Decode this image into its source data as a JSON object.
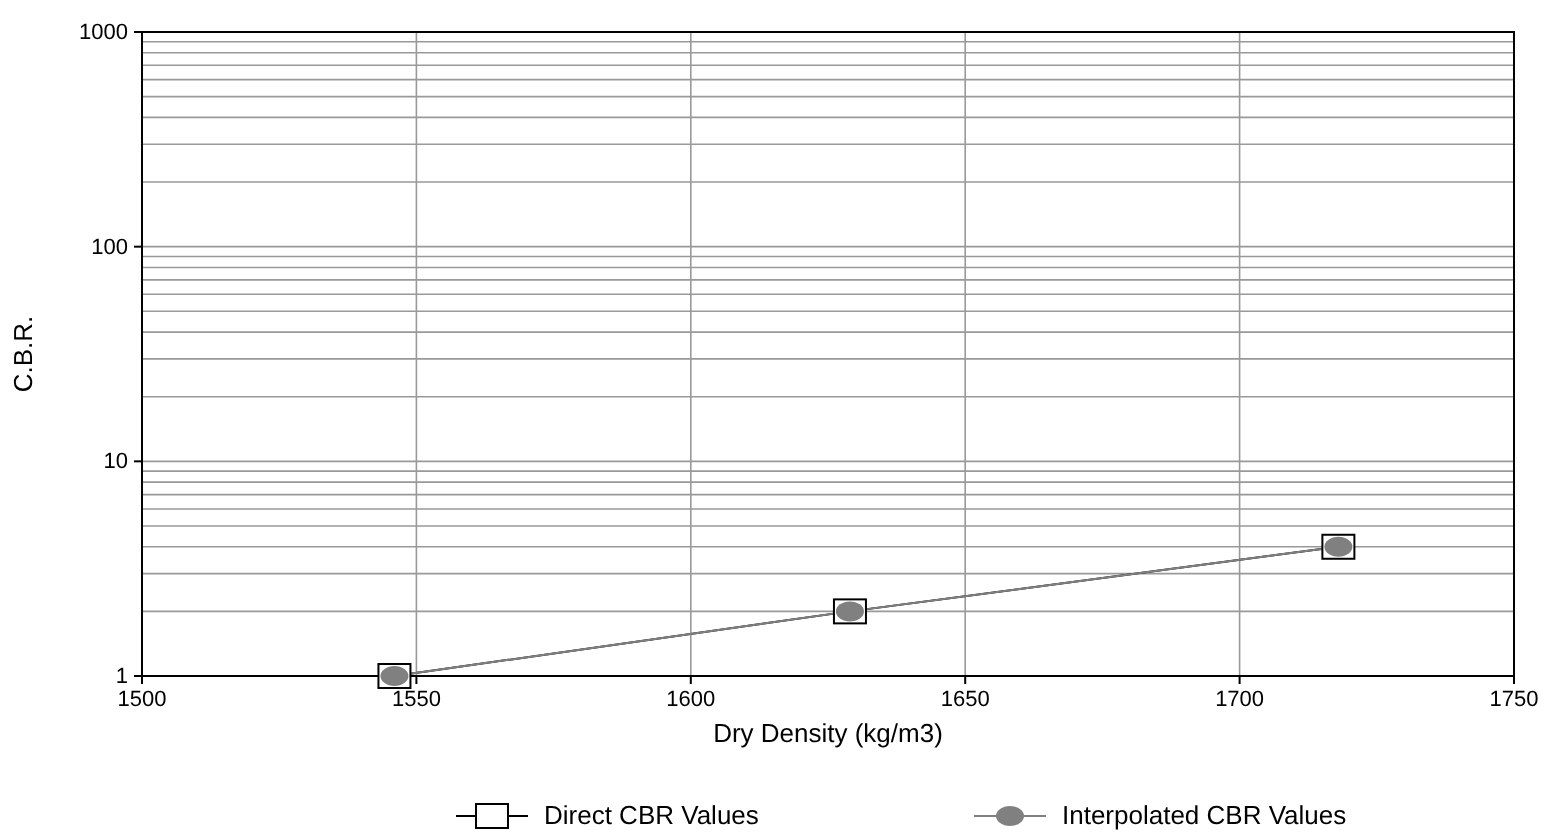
{
  "chart_data": {
    "type": "line",
    "xlabel": "Dry Density (kg/m3)",
    "ylabel": "C.B.R.",
    "log": "y",
    "grid": true,
    "legend": "bottom",
    "xlim": [
      1500,
      1750
    ],
    "xticks": [
      1500,
      1550,
      1600,
      1650,
      1700,
      1750
    ],
    "ylim": [
      1,
      1000
    ],
    "yticks": [
      1,
      10,
      100,
      1000
    ],
    "series": [
      {
        "name": "Direct CBR Values",
        "color": "#000000",
        "marker": "square",
        "x": [
          1546,
          1629,
          1718
        ],
        "values": [
          1,
          2,
          4
        ]
      },
      {
        "name": "Interpolated CBR Values",
        "color": "#808080",
        "marker": "circle",
        "x": [
          1546,
          1629,
          1718
        ],
        "values": [
          1,
          2,
          4
        ]
      }
    ]
  }
}
